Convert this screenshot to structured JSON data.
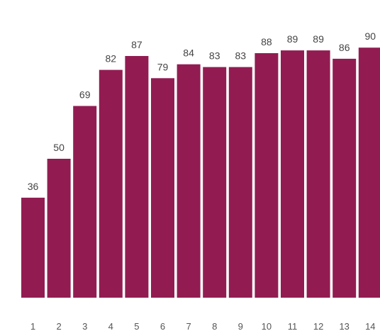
{
  "chart_data": {
    "type": "bar",
    "categories": [
      "1",
      "2",
      "3",
      "4",
      "5",
      "6",
      "7",
      "8",
      "9",
      "10",
      "11",
      "12",
      "13",
      "14"
    ],
    "values": [
      36,
      50,
      69,
      82,
      87,
      79,
      84,
      83,
      83,
      88,
      89,
      89,
      86,
      90
    ],
    "ylim": [
      0,
      100
    ],
    "grid": false,
    "legend": "none",
    "data_labels": true
  },
  "colors": {
    "bar": "#921c52",
    "label": "#444444",
    "tick": "#555555"
  }
}
